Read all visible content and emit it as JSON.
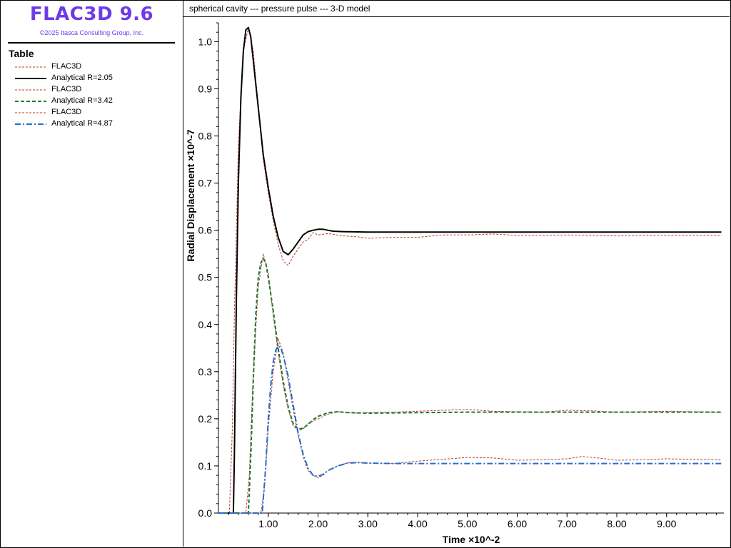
{
  "app": {
    "title": "FLAC3D 9.6",
    "copyright": "©2025 Itasca Consulting Group, Inc."
  },
  "legend": {
    "heading": "Table",
    "items": [
      {
        "label": "FLAC3D",
        "color": "#c0392b",
        "style": "dashed-thin"
      },
      {
        "label": "Analytical R=2.05",
        "color": "#000000",
        "style": "solid"
      },
      {
        "label": "FLAC3D",
        "color": "#c0392b",
        "style": "dashed-thin"
      },
      {
        "label": "Analytical R=3.42",
        "color": "#1e7a32",
        "style": "dashed"
      },
      {
        "label": "FLAC3D",
        "color": "#c0392b",
        "style": "dashed-thin"
      },
      {
        "label": "Analytical R=4.87",
        "color": "#1f6fd1",
        "style": "dashdot"
      }
    ]
  },
  "chart_data": {
    "type": "line",
    "title": "spherical cavity --- pressure pulse --- 3-D model",
    "xlabel": "Time ×10^-2",
    "ylabel": "Radial Displacement ×10^-7",
    "xlim": [
      0.0,
      10.15
    ],
    "ylim": [
      0.0,
      1.04
    ],
    "xticks": [
      "1.00",
      "2.00",
      "3.00",
      "4.00",
      "5.00",
      "6.00",
      "7.00",
      "8.00",
      "9.00"
    ],
    "yticks": [
      "0.0",
      "0.1",
      "0.2",
      "0.3",
      "0.4",
      "0.5",
      "0.6",
      "0.7",
      "0.8",
      "0.9",
      "1.0"
    ],
    "series": [
      {
        "name": "FLAC3D",
        "color": "#c0392b",
        "style": "dashed-thin",
        "points": [
          [
            0.0,
            0.0
          ],
          [
            0.22,
            0.0
          ],
          [
            0.28,
            0.18
          ],
          [
            0.32,
            0.42
          ],
          [
            0.4,
            0.78
          ],
          [
            0.5,
            0.98
          ],
          [
            0.6,
            1.03
          ],
          [
            0.7,
            0.98
          ],
          [
            0.8,
            0.86
          ],
          [
            0.9,
            0.75
          ],
          [
            1.0,
            0.68
          ],
          [
            1.1,
            0.62
          ],
          [
            1.2,
            0.57
          ],
          [
            1.3,
            0.535
          ],
          [
            1.4,
            0.525
          ],
          [
            1.5,
            0.545
          ],
          [
            1.6,
            0.56
          ],
          [
            1.7,
            0.575
          ],
          [
            1.8,
            0.58
          ],
          [
            1.9,
            0.595
          ],
          [
            2.0,
            0.59
          ],
          [
            2.2,
            0.593
          ],
          [
            2.5,
            0.588
          ],
          [
            2.8,
            0.586
          ],
          [
            3.0,
            0.583
          ],
          [
            3.3,
            0.584
          ],
          [
            3.5,
            0.585
          ],
          [
            4.0,
            0.585
          ],
          [
            4.5,
            0.59
          ],
          [
            5.0,
            0.59
          ],
          [
            5.5,
            0.592
          ],
          [
            6.0,
            0.589
          ],
          [
            6.5,
            0.589
          ],
          [
            7.0,
            0.59
          ],
          [
            7.5,
            0.589
          ],
          [
            8.0,
            0.588
          ],
          [
            8.5,
            0.589
          ],
          [
            9.0,
            0.589
          ],
          [
            9.5,
            0.589
          ],
          [
            10.1,
            0.589
          ]
        ]
      },
      {
        "name": "Analytical R=2.05",
        "color": "#000000",
        "style": "solid",
        "points": [
          [
            0.0,
            0.0
          ],
          [
            0.3,
            0.0
          ],
          [
            0.32,
            0.12
          ],
          [
            0.36,
            0.45
          ],
          [
            0.4,
            0.7
          ],
          [
            0.45,
            0.88
          ],
          [
            0.5,
            0.98
          ],
          [
            0.55,
            1.025
          ],
          [
            0.6,
            1.03
          ],
          [
            0.65,
            1.01
          ],
          [
            0.7,
            0.96
          ],
          [
            0.8,
            0.86
          ],
          [
            0.9,
            0.76
          ],
          [
            1.0,
            0.69
          ],
          [
            1.1,
            0.63
          ],
          [
            1.2,
            0.585
          ],
          [
            1.3,
            0.555
          ],
          [
            1.4,
            0.548
          ],
          [
            1.5,
            0.56
          ],
          [
            1.6,
            0.575
          ],
          [
            1.7,
            0.59
          ],
          [
            1.8,
            0.597
          ],
          [
            1.9,
            0.6
          ],
          [
            2.0,
            0.602
          ],
          [
            2.1,
            0.602
          ],
          [
            2.2,
            0.6
          ],
          [
            2.3,
            0.598
          ],
          [
            2.5,
            0.597
          ],
          [
            3.0,
            0.596
          ],
          [
            4.0,
            0.596
          ],
          [
            5.0,
            0.596
          ],
          [
            6.0,
            0.596
          ],
          [
            7.0,
            0.596
          ],
          [
            8.0,
            0.596
          ],
          [
            9.0,
            0.596
          ],
          [
            10.1,
            0.596
          ]
        ]
      },
      {
        "name": "FLAC3D",
        "color": "#c0392b",
        "style": "dashed-thin",
        "points": [
          [
            0.0,
            0.0
          ],
          [
            0.55,
            0.0
          ],
          [
            0.62,
            0.08
          ],
          [
            0.7,
            0.3
          ],
          [
            0.8,
            0.48
          ],
          [
            0.9,
            0.55
          ],
          [
            1.0,
            0.51
          ],
          [
            1.1,
            0.42
          ],
          [
            1.2,
            0.34
          ],
          [
            1.3,
            0.27
          ],
          [
            1.4,
            0.22
          ],
          [
            1.5,
            0.185
          ],
          [
            1.6,
            0.175
          ],
          [
            1.7,
            0.178
          ],
          [
            1.8,
            0.19
          ],
          [
            2.0,
            0.2
          ],
          [
            2.2,
            0.21
          ],
          [
            2.4,
            0.215
          ],
          [
            2.6,
            0.213
          ],
          [
            2.8,
            0.212
          ],
          [
            3.0,
            0.213
          ],
          [
            3.5,
            0.214
          ],
          [
            4.0,
            0.216
          ],
          [
            4.5,
            0.218
          ],
          [
            5.0,
            0.22
          ],
          [
            5.5,
            0.216
          ],
          [
            6.0,
            0.215
          ],
          [
            6.5,
            0.214
          ],
          [
            7.0,
            0.218
          ],
          [
            7.5,
            0.217
          ],
          [
            8.0,
            0.214
          ],
          [
            8.5,
            0.215
          ],
          [
            9.0,
            0.216
          ],
          [
            9.5,
            0.215
          ],
          [
            10.1,
            0.214
          ]
        ]
      },
      {
        "name": "Analytical R=3.42",
        "color": "#1e7a32",
        "style": "dashed",
        "points": [
          [
            0.0,
            0.0
          ],
          [
            0.6,
            0.0
          ],
          [
            0.65,
            0.12
          ],
          [
            0.7,
            0.28
          ],
          [
            0.75,
            0.42
          ],
          [
            0.8,
            0.5
          ],
          [
            0.85,
            0.53
          ],
          [
            0.9,
            0.54
          ],
          [
            0.95,
            0.53
          ],
          [
            1.0,
            0.5
          ],
          [
            1.1,
            0.43
          ],
          [
            1.2,
            0.35
          ],
          [
            1.3,
            0.28
          ],
          [
            1.4,
            0.225
          ],
          [
            1.5,
            0.19
          ],
          [
            1.6,
            0.178
          ],
          [
            1.7,
            0.18
          ],
          [
            1.8,
            0.188
          ],
          [
            1.9,
            0.198
          ],
          [
            2.0,
            0.205
          ],
          [
            2.2,
            0.213
          ],
          [
            2.4,
            0.215
          ],
          [
            2.6,
            0.213
          ],
          [
            3.0,
            0.212
          ],
          [
            4.0,
            0.213
          ],
          [
            5.0,
            0.214
          ],
          [
            6.0,
            0.214
          ],
          [
            7.0,
            0.214
          ],
          [
            8.0,
            0.214
          ],
          [
            9.0,
            0.214
          ],
          [
            10.1,
            0.214
          ]
        ]
      },
      {
        "name": "FLAC3D",
        "color": "#c0392b",
        "style": "dashed-thin",
        "points": [
          [
            0.0,
            0.0
          ],
          [
            0.85,
            0.0
          ],
          [
            0.92,
            0.05
          ],
          [
            1.0,
            0.18
          ],
          [
            1.1,
            0.3
          ],
          [
            1.2,
            0.37
          ],
          [
            1.3,
            0.34
          ],
          [
            1.4,
            0.28
          ],
          [
            1.5,
            0.22
          ],
          [
            1.6,
            0.165
          ],
          [
            1.7,
            0.12
          ],
          [
            1.8,
            0.09
          ],
          [
            1.9,
            0.08
          ],
          [
            2.0,
            0.075
          ],
          [
            2.1,
            0.08
          ],
          [
            2.2,
            0.09
          ],
          [
            2.4,
            0.1
          ],
          [
            2.6,
            0.107
          ],
          [
            2.8,
            0.108
          ],
          [
            3.0,
            0.106
          ],
          [
            3.5,
            0.105
          ],
          [
            4.0,
            0.11
          ],
          [
            4.5,
            0.114
          ],
          [
            5.0,
            0.118
          ],
          [
            5.5,
            0.117
          ],
          [
            6.0,
            0.112
          ],
          [
            6.5,
            0.113
          ],
          [
            7.0,
            0.115
          ],
          [
            7.3,
            0.12
          ],
          [
            7.7,
            0.116
          ],
          [
            8.0,
            0.112
          ],
          [
            8.5,
            0.113
          ],
          [
            9.0,
            0.115
          ],
          [
            9.5,
            0.114
          ],
          [
            10.1,
            0.113
          ]
        ]
      },
      {
        "name": "Analytical R=4.87",
        "color": "#1f6fd1",
        "style": "dashdot",
        "points": [
          [
            0.0,
            0.0
          ],
          [
            0.88,
            0.0
          ],
          [
            0.95,
            0.1
          ],
          [
            1.0,
            0.2
          ],
          [
            1.05,
            0.27
          ],
          [
            1.1,
            0.32
          ],
          [
            1.15,
            0.345
          ],
          [
            1.2,
            0.355
          ],
          [
            1.25,
            0.35
          ],
          [
            1.3,
            0.335
          ],
          [
            1.4,
            0.29
          ],
          [
            1.5,
            0.23
          ],
          [
            1.6,
            0.17
          ],
          [
            1.7,
            0.125
          ],
          [
            1.8,
            0.095
          ],
          [
            1.9,
            0.08
          ],
          [
            2.0,
            0.078
          ],
          [
            2.1,
            0.082
          ],
          [
            2.2,
            0.09
          ],
          [
            2.4,
            0.1
          ],
          [
            2.6,
            0.106
          ],
          [
            2.8,
            0.107
          ],
          [
            3.0,
            0.106
          ],
          [
            3.5,
            0.105
          ],
          [
            4.0,
            0.105
          ],
          [
            5.0,
            0.105
          ],
          [
            6.0,
            0.105
          ],
          [
            7.0,
            0.105
          ],
          [
            8.0,
            0.105
          ],
          [
            9.0,
            0.105
          ],
          [
            10.1,
            0.105
          ]
        ]
      }
    ]
  }
}
